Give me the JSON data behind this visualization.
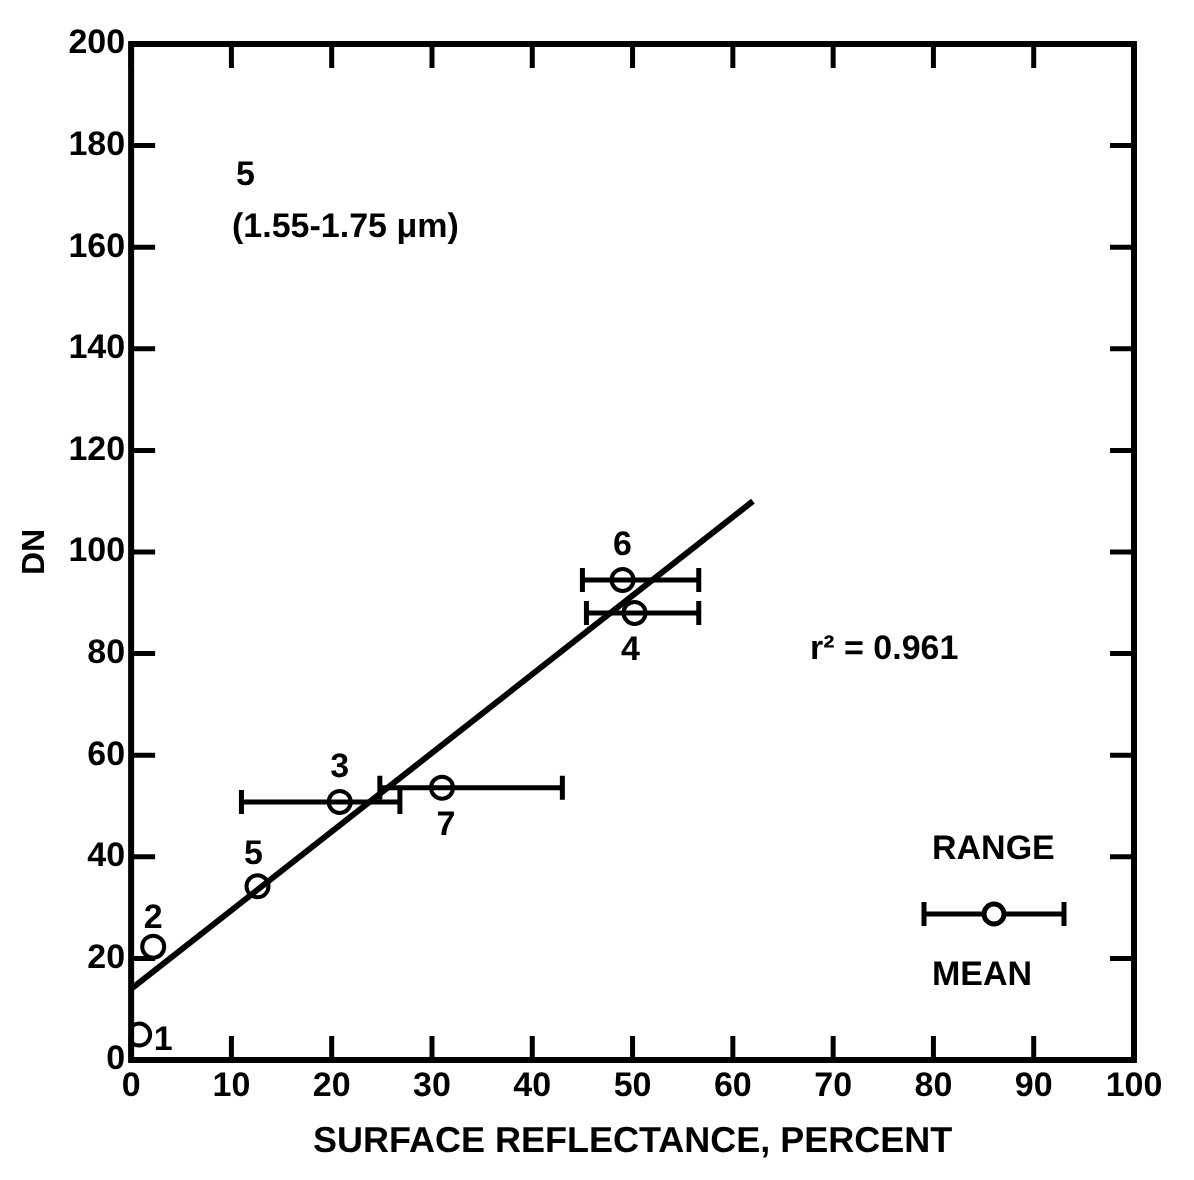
{
  "chart_data": {
    "type": "scatter",
    "xlabel": "SURFACE REFLECTANCE, PERCENT",
    "ylabel": "DN",
    "xlim": [
      0,
      100
    ],
    "xticks": [
      0,
      10,
      20,
      30,
      40,
      50,
      60,
      70,
      80,
      90,
      100
    ],
    "ylim": [
      0,
      200
    ],
    "yticks": [
      0,
      20,
      40,
      60,
      80,
      100,
      120,
      140,
      160,
      180,
      200
    ],
    "grid": false,
    "legend": false,
    "series": [
      {
        "type": "scatter",
        "color": "#000000",
        "marker": "circle",
        "x": [
          0.8,
          2.2,
          12.6,
          20.8,
          31,
          49,
          50.2
        ],
        "values": [
          5,
          22.3,
          34.2,
          50.8,
          53.6,
          94.5,
          88
        ],
        "xerrors": [
          null,
          null,
          null,
          [
            11,
            26.8
          ],
          [
            24.8,
            43
          ],
          [
            45,
            56.6
          ],
          [
            45.4,
            56.6
          ]
        ]
      },
      {
        "type": "line",
        "color": "#000000",
        "marker": "none",
        "line_style": "solid",
        "x": [
          0,
          62
        ],
        "values": [
          14,
          110
        ]
      }
    ],
    "annotations": [
      "5",
      "(1.55-1.75 μm)",
      "r² = 0.961",
      "RANGE",
      "MEAN",
      {
        "text": "1",
        "x": 0.8,
        "y": 5
      },
      {
        "text": "2",
        "x": 2.2,
        "y": 22.3
      },
      {
        "text": "5",
        "x": 12.6,
        "y": 34.2
      },
      {
        "text": "3",
        "x": 20.8,
        "y": 50.8
      },
      {
        "text": "7",
        "x": 31,
        "y": 53.6
      },
      {
        "text": "6",
        "x": 49,
        "y": 94.5
      },
      {
        "text": "4",
        "x": 50.2,
        "y": 88
      }
    ]
  }
}
